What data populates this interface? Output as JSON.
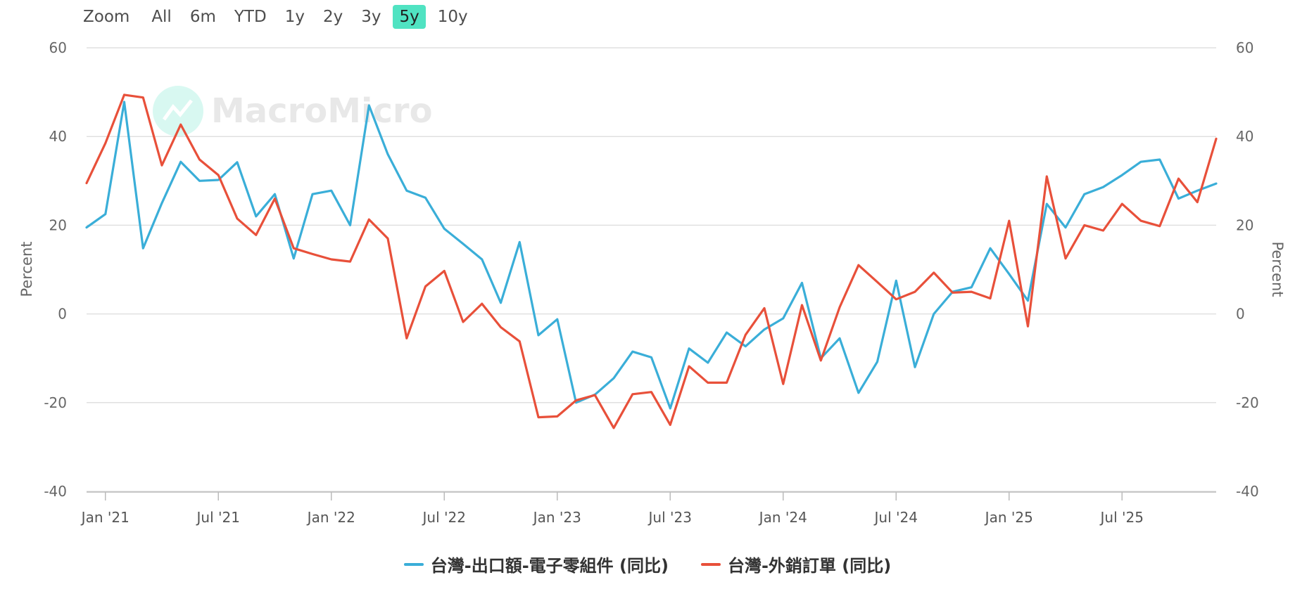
{
  "zoom": {
    "label": "Zoom",
    "buttons": [
      "All",
      "6m",
      "YTD",
      "1y",
      "2y",
      "3y",
      "5y",
      "10y"
    ],
    "active": "5y"
  },
  "watermark": "MacroMicro",
  "colors": {
    "series1": "#3aaed8",
    "series2": "#e8503a",
    "grid": "#e0e0e0",
    "zoom_active": "#50e3c2"
  },
  "chart_data": {
    "type": "line",
    "x_start": "2020-12",
    "x_labels": [
      "Jan '21",
      "Jul '21",
      "Jan '22",
      "Jul '22",
      "Jan '23",
      "Jul '23",
      "Jan '24",
      "Jul '24",
      "Jan '25",
      "Jul '25"
    ],
    "x_label_indices": [
      1,
      7,
      13,
      19,
      25,
      31,
      37,
      43,
      49,
      55
    ],
    "ylabel_left": "Percent",
    "ylabel_right": "Percent",
    "ylim": [
      -40,
      60
    ],
    "yticks": [
      60,
      40,
      20,
      0,
      -20,
      -40
    ],
    "legend_position": "bottom",
    "series": [
      {
        "name": "台灣-出口額-電子零組件 (同比)",
        "color": "#3aaed8",
        "values": [
          19.5,
          22.5,
          47.8,
          14.8,
          25.0,
          34.3,
          30.0,
          30.2,
          34.2,
          22.0,
          27.0,
          12.5,
          27.0,
          27.8,
          20.0,
          47.0,
          36.0,
          27.8,
          26.2,
          19.2,
          15.8,
          12.3,
          2.5,
          16.2,
          -4.8,
          -1.2,
          -20.0,
          -18.2,
          -14.5,
          -8.5,
          -9.8,
          -21.3,
          -7.8,
          -11.0,
          -4.2,
          -7.3,
          -3.5,
          -1.0,
          7.0,
          -10.0,
          -5.5,
          -17.8,
          -10.8,
          7.5,
          -12.0,
          0.0,
          5.0,
          6.0,
          14.8,
          9.0,
          3.0,
          24.8,
          19.5,
          27.0,
          28.6,
          31.3,
          34.3,
          34.8,
          26.0,
          27.8,
          29.4
        ]
      },
      {
        "name": "台灣-外銷訂單 (同比)",
        "color": "#e8503a",
        "values": [
          29.5,
          38.5,
          49.4,
          48.8,
          33.5,
          42.7,
          34.8,
          31.3,
          21.5,
          17.8,
          26.0,
          14.8,
          13.5,
          12.3,
          11.8,
          21.3,
          17.0,
          -5.5,
          6.2,
          9.7,
          -1.8,
          2.3,
          -3.0,
          -6.2,
          -23.3,
          -23.1,
          -19.5,
          -18.3,
          -25.7,
          -18.1,
          -17.6,
          -25.0,
          -11.8,
          -15.5,
          -15.5,
          -4.7,
          1.3,
          -15.8,
          2.0,
          -10.5,
          1.5,
          11.0,
          7.2,
          3.3,
          5.0,
          9.3,
          4.8,
          5.0,
          3.5,
          21.0,
          -2.8,
          31.0,
          12.5,
          20.0,
          18.8,
          24.8,
          21.0,
          19.8,
          30.5,
          25.2,
          39.5
        ]
      }
    ]
  }
}
